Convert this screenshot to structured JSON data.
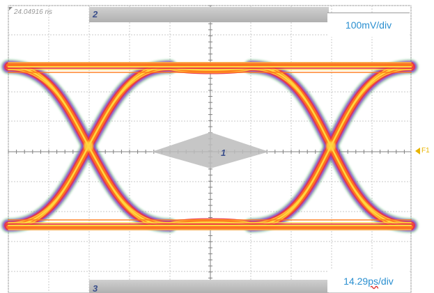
{
  "display": {
    "timestamp": "24.04916 ns",
    "vertical_scale": "100mV/div",
    "horizontal_scale_value": "14.29 ",
    "horizontal_scale_unit": "ps",
    "horizontal_scale_suffix": "/div"
  },
  "markers": {
    "top_marker": "2",
    "center_marker": "1",
    "bottom_marker": "3"
  },
  "trace": {
    "function_label": "F1"
  },
  "colors": {
    "grid": "#c8c8c8",
    "axis": "#808080",
    "trace_core": "#ffd640",
    "trace_mid": "#ff7a1a",
    "trace_outer": "#e8324a",
    "trace_edge": "#8a3cc8",
    "trace_noise": "#3fae5a",
    "label_blue": "#2a8fd0",
    "function_marker": "#e8b400"
  },
  "icons": {
    "function_marker": "left-triangle-icon",
    "trigger_marker": "diamond-icon"
  }
}
